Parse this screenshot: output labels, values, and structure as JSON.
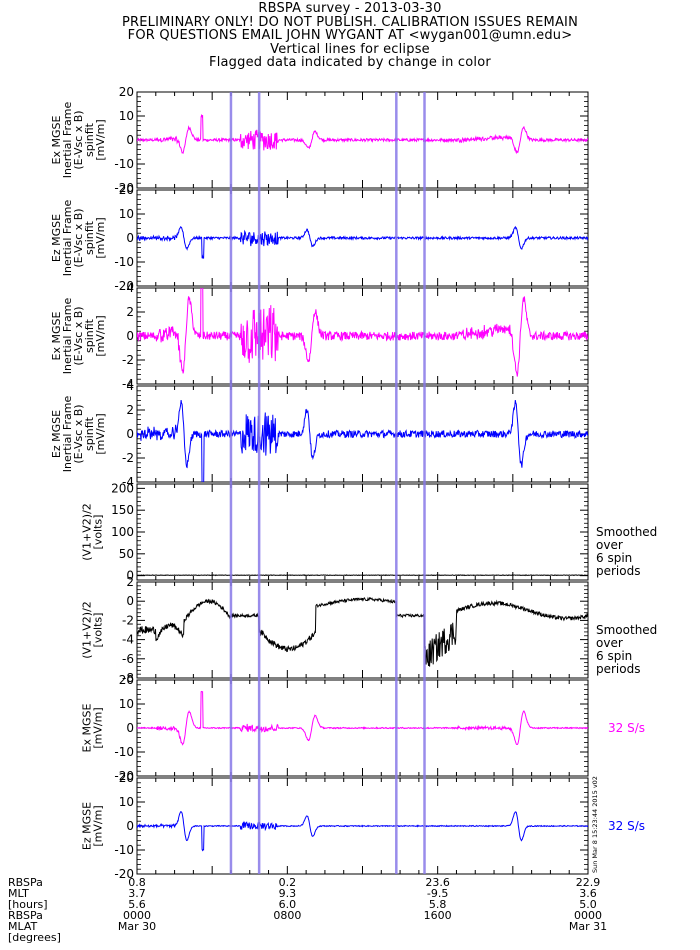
{
  "header": {
    "line1": "RBSPA survey - 2013-03-30",
    "line2": "PRELIMINARY ONLY! DO NOT PUBLISH. CALIBRATION ISSUES REMAIN",
    "line3": "FOR QUESTIONS EMAIL JOHN WYGANT AT <wygan001@umn.edu>",
    "line4": "Vertical lines for eclipse",
    "line5": "Flagged data indicated by change in color"
  },
  "colors": {
    "magenta": "#ff00ff",
    "blue": "#0000ff",
    "black": "#000000",
    "eclipse": "#8878e8"
  },
  "chart_data": {
    "type": "line",
    "x_range_hours": [
      0,
      24
    ],
    "eclipse_lines_hours": [
      5.0,
      6.5,
      13.8,
      15.3
    ],
    "panels": [
      {
        "ylabel": [
          "Ex MGSE",
          "Inertial Frame",
          "(E-Vsc x B)",
          "spinfit",
          "[mV/m]"
        ],
        "ylim": [
          -20,
          20
        ],
        "yticks": [
          -20,
          -10,
          0,
          10,
          20
        ],
        "color": "magenta",
        "side_label": []
      },
      {
        "ylabel": [
          "Ez MGSE",
          "Inertial Frame",
          "(E-Vsc x B)",
          "spinfit",
          "[mV/m]"
        ],
        "ylim": [
          -20,
          20
        ],
        "yticks": [
          -20,
          -10,
          0,
          10,
          20
        ],
        "color": "blue",
        "side_label": []
      },
      {
        "ylabel": [
          "Ex MGSE",
          "Inertial Frame",
          "(E-Vsc x B)",
          "spinfit",
          "[mV/m]"
        ],
        "ylim": [
          -4,
          4
        ],
        "yticks": [
          -4,
          -2,
          0,
          2,
          4
        ],
        "color": "magenta",
        "side_label": []
      },
      {
        "ylabel": [
          "Ez MGSE",
          "Inertial Frame",
          "(E-Vsc x B)",
          "spinfit",
          "[mV/m]"
        ],
        "ylim": [
          -4,
          4
        ],
        "yticks": [
          -4,
          -2,
          0,
          2,
          4
        ],
        "color": "blue",
        "side_label": []
      },
      {
        "ylabel": [
          "(V1+V2)/2",
          "[volts]"
        ],
        "ylim": [
          -10,
          210
        ],
        "yticks": [
          0,
          50,
          100,
          150,
          200
        ],
        "color": "black",
        "side_label": [
          "Smoothed",
          "over",
          "6 spin",
          "periods"
        ]
      },
      {
        "ylabel": [
          "(V1+V2)/2",
          "[volts]"
        ],
        "ylim": [
          -8,
          2
        ],
        "yticks": [
          -8,
          -6,
          -4,
          -2,
          0,
          2
        ],
        "color": "black",
        "side_label": [
          "Smoothed",
          "over",
          "6 spin",
          "periods"
        ]
      },
      {
        "ylabel": [
          "Ex MGSE",
          "[mV/m]"
        ],
        "ylim": [
          -20,
          20
        ],
        "yticks": [
          -20,
          -10,
          0,
          10,
          20
        ],
        "color": "magenta",
        "side_label": [
          "32 S/s"
        ]
      },
      {
        "ylabel": [
          "Ez MGSE",
          "[mV/m]"
        ],
        "ylim": [
          -20,
          20
        ],
        "yticks": [
          -20,
          -10,
          0,
          10,
          20
        ],
        "color": "blue",
        "side_label": [
          "32 S/s"
        ]
      }
    ],
    "annotation": "Sun Mar  8 15:23:44 2015 v02"
  },
  "footer": {
    "row_labels": [
      "RBSPa",
      "MLT",
      "[hours]",
      "RBSPa",
      "MLAT",
      "[degrees]"
    ],
    "columns": [
      {
        "values": [
          "0.8",
          "3.7",
          "5.6",
          "0000",
          "Mar 30"
        ]
      },
      {
        "values": [
          "0.2",
          "9.3",
          "6.0",
          "0800",
          ""
        ]
      },
      {
        "values": [
          "23.6",
          "-9.5",
          "5.8",
          "1600",
          ""
        ]
      },
      {
        "values": [
          "22.9",
          "3.6",
          "5.0",
          "0000",
          "Mar 31"
        ]
      }
    ]
  }
}
